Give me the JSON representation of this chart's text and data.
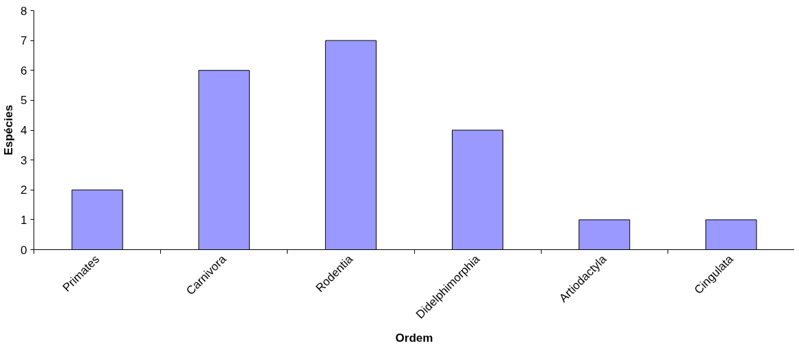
{
  "chart_data": {
    "type": "bar",
    "xlabel": "Ordem",
    "ylabel": "Espécies",
    "categories": [
      "Primates",
      "Carnivora",
      "Rodentia",
      "Didelphimorphia",
      "Artiodactyla",
      "Cingulata"
    ],
    "values": [
      2,
      6,
      7,
      4,
      1,
      1
    ],
    "color": "#9999ff",
    "ylim": [
      0,
      8
    ],
    "yticks": [
      0,
      1,
      2,
      3,
      4,
      5,
      6,
      7,
      8
    ],
    "grid": false
  }
}
